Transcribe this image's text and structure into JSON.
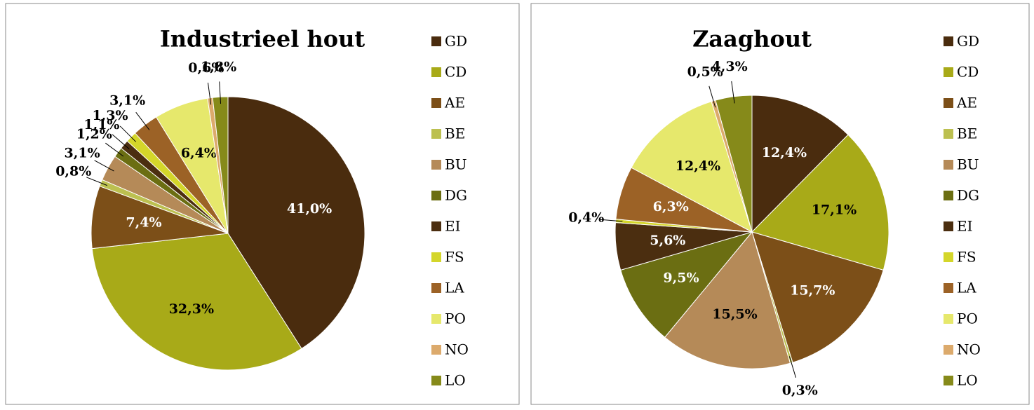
{
  "chart_data": [
    {
      "type": "pie",
      "title": "Industrieel hout",
      "categories": [
        "GD",
        "CD",
        "AE",
        "BE",
        "BU",
        "DG",
        "EI",
        "FS",
        "LA",
        "PO",
        "NO",
        "LO"
      ],
      "values": [
        41.0,
        32.3,
        7.4,
        0.8,
        3.1,
        1.2,
        1.1,
        1.3,
        3.1,
        6.4,
        0.6,
        1.8
      ],
      "value_labels": [
        "41,0%",
        "32,3%",
        "7,4%",
        "0,8%",
        "3,1%",
        "1,2%",
        "1,1%",
        "1,3%",
        "3,1%",
        "6,4%",
        "0,6%",
        "1,8%"
      ],
      "colors": [
        "#4a2c0e",
        "#a8aa18",
        "#7c4f18",
        "#bcc050",
        "#b58a58",
        "#6b6e12",
        "#4b2e10",
        "#d4d62a",
        "#9c6226",
        "#e6e86c",
        "#dcaa6c",
        "#868a1a"
      ],
      "legend": "right"
    },
    {
      "type": "pie",
      "title": "Zaaghout",
      "categories": [
        "GD",
        "CD",
        "AE",
        "BE",
        "BU",
        "DG",
        "EI",
        "FS",
        "LA",
        "PO",
        "NO",
        "LO"
      ],
      "values": [
        12.4,
        17.1,
        15.7,
        0.3,
        15.5,
        9.5,
        5.6,
        0.4,
        6.3,
        12.4,
        0.5,
        4.3
      ],
      "value_labels": [
        "12,4%",
        "17,1%",
        "15,7%",
        "0,3%",
        "15,5%",
        "9,5%",
        "5,6%",
        "0,4%",
        "6,3%",
        "12,4%",
        "0,5%",
        "4,3%"
      ],
      "colors": [
        "#4a2c0e",
        "#a8aa18",
        "#7c4f18",
        "#bcc050",
        "#b58a58",
        "#6b6e12",
        "#4b2e10",
        "#d4d62a",
        "#9c6226",
        "#e6e86c",
        "#dcaa6c",
        "#868a1a"
      ],
      "legend": "right"
    }
  ]
}
